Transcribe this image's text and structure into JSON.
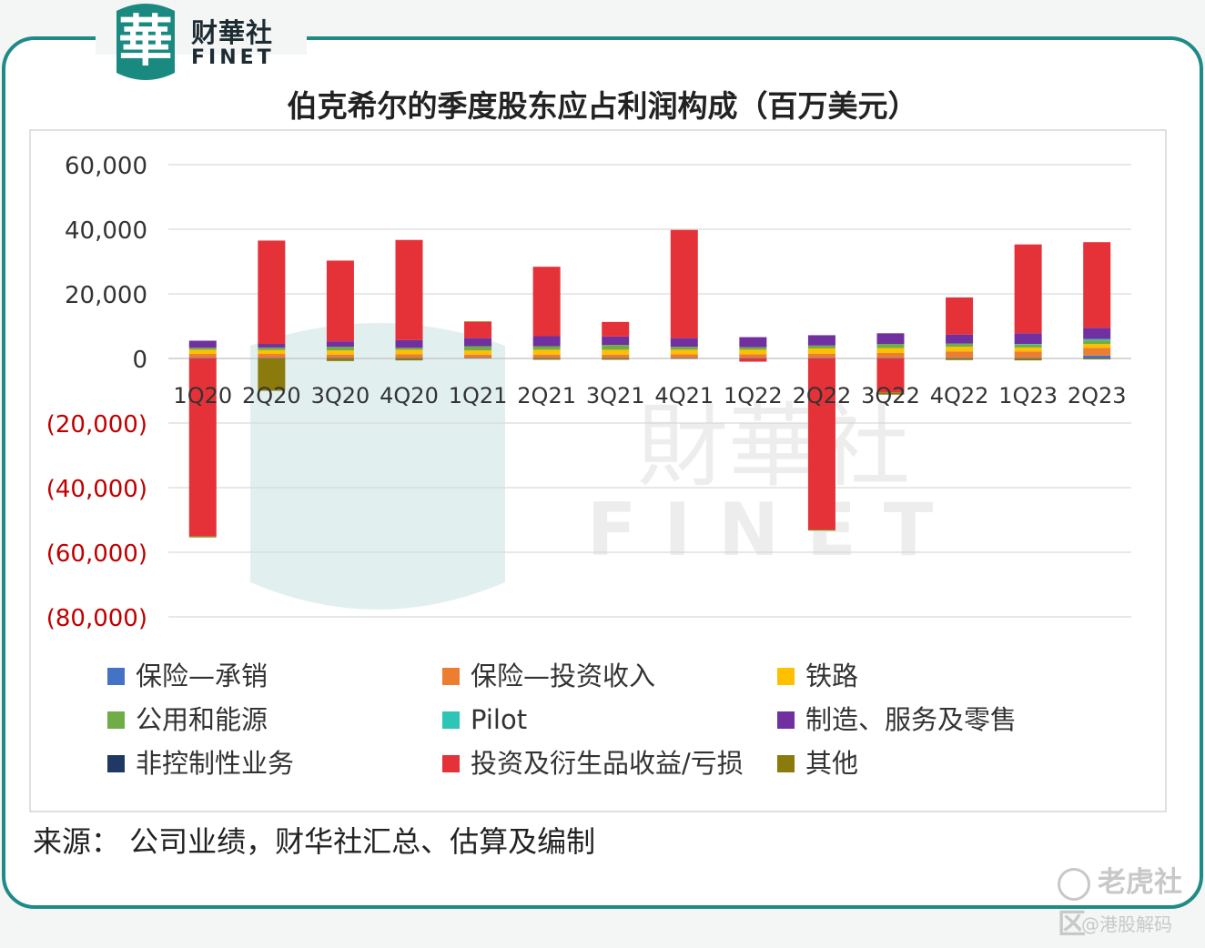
{
  "brand": {
    "logo_char": "華",
    "name_cn": "财華社",
    "name_en": "FINET"
  },
  "chart_data": {
    "type": "bar",
    "stacked": true,
    "title": "伯克希尔的季度股东应占利润构成（百万美元）",
    "categories": [
      "1Q20",
      "2Q20",
      "3Q20",
      "4Q20",
      "1Q21",
      "2Q21",
      "3Q21",
      "4Q21",
      "1Q22",
      "2Q22",
      "3Q22",
      "4Q22",
      "1Q23",
      "2Q23"
    ],
    "ylim": [
      -80000,
      60000
    ],
    "yticks": [
      60000,
      40000,
      20000,
      0,
      -20000,
      -40000,
      -60000,
      -80000
    ],
    "ytick_labels": [
      "60,000",
      "40,000",
      "20,000",
      "0",
      "(20,000)",
      "(40,000)",
      "(60,000)",
      "(80,000)"
    ],
    "grid": true,
    "legend_position": "bottom",
    "series": [
      {
        "name": "保险—承销",
        "color": "#4472c4",
        "values": [
          200,
          200,
          200,
          200,
          200,
          200,
          200,
          200,
          200,
          200,
          200,
          200,
          200,
          900
        ]
      },
      {
        "name": "保险—投资收入",
        "color": "#ed7d31",
        "values": [
          1200,
          1200,
          1000,
          1100,
          1000,
          1000,
          1000,
          1100,
          1100,
          1300,
          1500,
          2000,
          2000,
          2400
        ]
      },
      {
        "name": "铁路",
        "color": "#ffc000",
        "values": [
          1300,
          1200,
          1300,
          1400,
          1300,
          1500,
          1500,
          1400,
          1400,
          1600,
          1500,
          1400,
          1200,
          1200
        ]
      },
      {
        "name": "公用和能源",
        "color": "#70ad47",
        "values": [
          600,
          800,
          1100,
          600,
          1300,
          1100,
          1500,
          900,
          800,
          900,
          1300,
          1000,
          900,
          1100
        ]
      },
      {
        "name": "Pilot",
        "color": "#2ec4b6",
        "values": [
          0,
          0,
          0,
          0,
          0,
          0,
          0,
          0,
          0,
          0,
          0,
          0,
          200,
          400
        ]
      },
      {
        "name": "制造、服务及零售",
        "color": "#7030a0",
        "values": [
          2200,
          1100,
          1700,
          2400,
          2500,
          3100,
          2600,
          2700,
          3100,
          3200,
          3300,
          2800,
          3300,
          3500
        ]
      },
      {
        "name": "非控制性业务",
        "color": "#203864",
        "values": [
          0,
          0,
          0,
          0,
          0,
          0,
          0,
          0,
          0,
          0,
          0,
          0,
          0,
          0
        ]
      },
      {
        "name": "投资及衍生品收益/亏损",
        "color": "#e53238",
        "values": [
          -55000,
          32000,
          25000,
          31000,
          5000,
          21500,
          4500,
          33500,
          -1000,
          -53000,
          -10500,
          11500,
          27500,
          26500
        ]
      },
      {
        "name": "其他",
        "color": "#8b7a0c",
        "values": [
          -400,
          -10000,
          -800,
          -600,
          200,
          -400,
          -400,
          -100,
          0,
          -300,
          -700,
          -500,
          -600,
          -300
        ]
      }
    ]
  },
  "source_text": "来源：  公司业绩，财华社汇总、估算及编制",
  "watermark": {
    "corner": "老虎社区",
    "user": "@港股解码",
    "center_cn": "財華社",
    "center_en": "FINET"
  }
}
